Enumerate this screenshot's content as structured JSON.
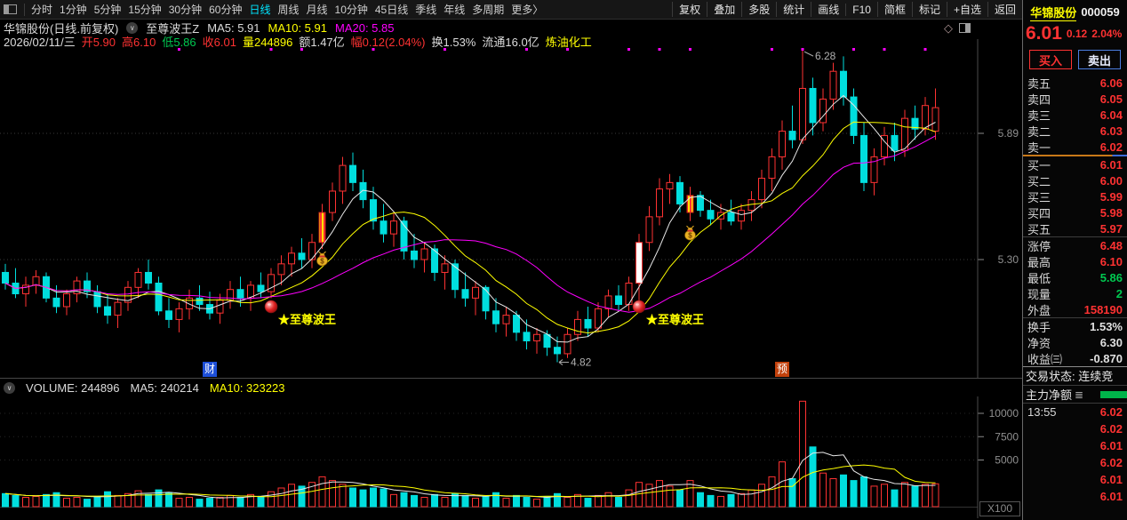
{
  "colors": {
    "red": "#ff3232",
    "green": "#00c850",
    "yellow": "#ffff00",
    "cyan": "#00dede",
    "magenta": "#ff00ff",
    "blue": "#4a7de0",
    "greenbar": "#00b44a",
    "axis": "#4a4a4a",
    "grid": "#3a3a3a",
    "label": "#909090",
    "ma5": "#e8e8e8",
    "ma10": "#ffff00",
    "ma20": "#ff00ff"
  },
  "topbar": {
    "tabs": [
      "分时",
      "1分钟",
      "5分钟",
      "15分钟",
      "30分钟",
      "60分钟",
      "日线",
      "周线",
      "月线",
      "10分钟",
      "45日线",
      "季线",
      "年线",
      "多周期",
      "更多〉"
    ],
    "active_tab": "日线",
    "tools": [
      "复权",
      "叠加",
      "多股",
      "统计",
      "画线",
      "F10",
      "简框",
      "标记",
      "+自选",
      "返回"
    ]
  },
  "chart_header": {
    "title": "华锦股份(日线.前复权)",
    "chevron_icon": "∨",
    "indicator": "至尊波王Z",
    "ma5_label": "MA5: 5.91",
    "ma10_label": "MA10: 5.91",
    "ma20_label": "MA20: 5.85"
  },
  "info_line": {
    "date": "2026/02/11/三",
    "open": "开5.90",
    "high": "高6.10",
    "low": "低5.86",
    "close": "收6.01",
    "volume": "量244896",
    "amount": "额1.47亿",
    "range": "幅0.12(2.04%)",
    "turnover": "换1.53%",
    "float_shares": "流通16.0亿",
    "industry": "炼油化工"
  },
  "panel": {
    "name": "华锦股份",
    "code": "000059",
    "price": "6.01",
    "change": "0.12",
    "change_pct": "2.04%",
    "buy_label": "买入",
    "sell_label": "卖出",
    "order_book": {
      "sells": [
        {
          "label": "卖五",
          "price": "6.06"
        },
        {
          "label": "卖四",
          "price": "6.05"
        },
        {
          "label": "卖三",
          "price": "6.04"
        },
        {
          "label": "卖二",
          "price": "6.03"
        },
        {
          "label": "卖一",
          "price": "6.02"
        }
      ],
      "buys": [
        {
          "label": "买一",
          "price": "6.01"
        },
        {
          "label": "买二",
          "price": "6.00"
        },
        {
          "label": "买三",
          "price": "5.99"
        },
        {
          "label": "买四",
          "price": "5.98"
        },
        {
          "label": "买五",
          "price": "5.97"
        }
      ]
    },
    "stats": [
      {
        "label": "涨停",
        "value": "6.48",
        "color": "#ff3232"
      },
      {
        "label": "最高",
        "value": "6.10",
        "color": "#ff3232"
      },
      {
        "label": "最低",
        "value": "5.86",
        "color": "#00c850"
      },
      {
        "label": "现量",
        "value": "2",
        "color": "#00c850"
      },
      {
        "label": "外盘",
        "value": "158190",
        "color": "#ff3232"
      }
    ],
    "stats2": [
      {
        "label": "换手",
        "value": "1.53%",
        "color": "#e0e0e0"
      },
      {
        "label": "净资",
        "value": "6.30",
        "color": "#e0e0e0"
      },
      {
        "label": "收益㈢",
        "value": "-0.870",
        "color": "#e0e0e0"
      }
    ],
    "trade_status": "交易状态: 连续竞",
    "main_flow_label": "主力净额",
    "doc_icon": "≣",
    "ticks": [
      {
        "time": "13:55",
        "price": "6.02"
      },
      {
        "time": "",
        "price": "6.02"
      },
      {
        "time": "",
        "price": "6.01"
      },
      {
        "time": "",
        "price": "6.02"
      },
      {
        "time": "",
        "price": "6.01"
      },
      {
        "time": "",
        "price": "6.01"
      }
    ]
  },
  "chart_data": {
    "type": "candlestick",
    "title": "华锦股份 日线 前复权",
    "grid_prices": [
      {
        "label": "5.89",
        "price": 5.89
      },
      {
        "label": "5.30",
        "price": 5.3
      }
    ],
    "annotations": [
      {
        "label": "6.28",
        "index": 78,
        "price": 6.28,
        "kind": "peak"
      },
      {
        "label": "4.82",
        "index": 54,
        "price": 4.82,
        "kind": "trough"
      }
    ],
    "signals": [
      {
        "index": 26,
        "price": 5.08,
        "text": "★至尊波王"
      },
      {
        "index": 62,
        "price": 5.08,
        "text": "★至尊波王"
      }
    ],
    "moneybags": [
      {
        "index": 31,
        "price": 5.3
      },
      {
        "index": 67,
        "price": 5.42
      }
    ],
    "event_markers": [
      {
        "label": "财",
        "index": 20,
        "bg": "#1d4fd8"
      },
      {
        "label": "预",
        "index": 76,
        "bg": "#c2410c"
      }
    ],
    "dots": [
      17,
      26,
      29,
      36,
      43,
      51,
      55,
      61,
      64,
      67,
      75,
      78,
      83,
      86,
      90
    ],
    "special_candles": {
      "striped": [
        31,
        67
      ],
      "white_body": [
        62
      ]
    },
    "vol_header": {
      "title": "VOLUME: 244896",
      "ma5": "MA5: 240214",
      "ma10": "MA10: 323223",
      "chevron_icon": "∨"
    },
    "volume_axis": {
      "labels": [
        "10000",
        "7500",
        "5000"
      ],
      "values": [
        10000,
        7500,
        5000
      ],
      "unit": "X100"
    },
    "candles": [
      [
        5.24,
        5.28,
        5.16,
        5.19,
        1400
      ],
      [
        5.19,
        5.26,
        5.12,
        5.14,
        1200
      ],
      [
        5.14,
        5.22,
        5.08,
        5.18,
        1000
      ],
      [
        5.18,
        5.25,
        5.14,
        5.22,
        1100
      ],
      [
        5.22,
        5.24,
        5.1,
        5.12,
        1300
      ],
      [
        5.12,
        5.18,
        5.05,
        5.08,
        1500
      ],
      [
        5.08,
        5.16,
        5.04,
        5.14,
        900
      ],
      [
        5.14,
        5.22,
        5.1,
        5.2,
        1000
      ],
      [
        5.2,
        5.24,
        5.12,
        5.15,
        800
      ],
      [
        5.15,
        5.18,
        5.05,
        5.08,
        1100
      ],
      [
        5.08,
        5.14,
        5.0,
        5.04,
        1600
      ],
      [
        5.04,
        5.12,
        4.98,
        5.1,
        1200
      ],
      [
        5.1,
        5.2,
        5.06,
        5.17,
        1400
      ],
      [
        5.17,
        5.26,
        5.12,
        5.24,
        1700
      ],
      [
        5.24,
        5.3,
        5.16,
        5.19,
        1300
      ],
      [
        5.19,
        5.22,
        5.04,
        5.06,
        1800
      ],
      [
        5.06,
        5.12,
        4.98,
        5.02,
        1500
      ],
      [
        5.02,
        5.1,
        4.96,
        5.07,
        900
      ],
      [
        5.07,
        5.16,
        5.02,
        5.12,
        1000
      ],
      [
        5.12,
        5.18,
        5.06,
        5.09,
        800
      ],
      [
        5.09,
        5.15,
        5.02,
        5.05,
        900
      ],
      [
        5.05,
        5.14,
        5.0,
        5.11,
        1000
      ],
      [
        5.11,
        5.2,
        5.07,
        5.16,
        1200
      ],
      [
        5.16,
        5.22,
        5.08,
        5.12,
        1000
      ],
      [
        5.12,
        5.2,
        5.06,
        5.18,
        1300
      ],
      [
        5.18,
        5.24,
        5.12,
        5.15,
        1100
      ],
      [
        5.15,
        5.26,
        5.12,
        5.23,
        1600
      ],
      [
        5.23,
        5.32,
        5.18,
        5.28,
        2000
      ],
      [
        5.28,
        5.36,
        5.22,
        5.33,
        2400
      ],
      [
        5.33,
        5.4,
        5.26,
        5.3,
        2200
      ],
      [
        5.3,
        5.42,
        5.26,
        5.38,
        2600
      ],
      [
        5.38,
        5.56,
        5.35,
        5.52,
        3200
      ],
      [
        5.52,
        5.66,
        5.48,
        5.62,
        2800
      ],
      [
        5.62,
        5.78,
        5.56,
        5.74,
        2400
      ],
      [
        5.74,
        5.8,
        5.62,
        5.66,
        2000
      ],
      [
        5.66,
        5.72,
        5.54,
        5.58,
        1800
      ],
      [
        5.58,
        5.64,
        5.44,
        5.48,
        2000
      ],
      [
        5.48,
        5.56,
        5.38,
        5.42,
        1900
      ],
      [
        5.42,
        5.52,
        5.36,
        5.48,
        1300
      ],
      [
        5.48,
        5.5,
        5.3,
        5.34,
        1500
      ],
      [
        5.34,
        5.42,
        5.26,
        5.3,
        1200
      ],
      [
        5.3,
        5.38,
        5.24,
        5.35,
        1000
      ],
      [
        5.35,
        5.37,
        5.2,
        5.24,
        1300
      ],
      [
        5.24,
        5.32,
        5.16,
        5.28,
        1000
      ],
      [
        5.28,
        5.3,
        5.12,
        5.16,
        1400
      ],
      [
        5.16,
        5.24,
        5.08,
        5.12,
        1200
      ],
      [
        5.12,
        5.2,
        5.04,
        5.17,
        900
      ],
      [
        5.17,
        5.18,
        5.02,
        5.06,
        1100
      ],
      [
        5.06,
        5.12,
        4.96,
        5.0,
        1500
      ],
      [
        5.0,
        5.08,
        4.94,
        5.04,
        900
      ],
      [
        5.04,
        5.06,
        4.92,
        4.96,
        1200
      ],
      [
        4.96,
        5.02,
        4.88,
        4.92,
        1000
      ],
      [
        4.92,
        4.98,
        4.86,
        4.95,
        800
      ],
      [
        4.95,
        4.97,
        4.85,
        4.89,
        1100
      ],
      [
        4.89,
        4.94,
        4.82,
        4.86,
        1400
      ],
      [
        4.86,
        4.98,
        4.84,
        4.95,
        1000
      ],
      [
        4.95,
        5.06,
        4.92,
        5.02,
        1300
      ],
      [
        5.02,
        5.08,
        4.94,
        4.98,
        900
      ],
      [
        4.98,
        5.1,
        4.96,
        5.07,
        1200
      ],
      [
        5.07,
        5.16,
        5.03,
        5.13,
        1500
      ],
      [
        5.13,
        5.18,
        5.06,
        5.09,
        1000
      ],
      [
        5.09,
        5.22,
        5.06,
        5.19,
        1800
      ],
      [
        5.19,
        5.42,
        5.1,
        5.38,
        2600
      ],
      [
        5.38,
        5.55,
        5.34,
        5.5,
        2400
      ],
      [
        5.5,
        5.68,
        5.46,
        5.63,
        2800
      ],
      [
        5.63,
        5.7,
        5.56,
        5.66,
        2200
      ],
      [
        5.66,
        5.69,
        5.52,
        5.56,
        1800
      ],
      [
        5.52,
        5.64,
        5.48,
        5.6,
        2800
      ],
      [
        5.6,
        5.62,
        5.5,
        5.53,
        1500
      ],
      [
        5.53,
        5.58,
        5.46,
        5.49,
        1200
      ],
      [
        5.49,
        5.56,
        5.44,
        5.52,
        1100
      ],
      [
        5.52,
        5.58,
        5.46,
        5.48,
        1300
      ],
      [
        5.48,
        5.56,
        5.44,
        5.53,
        1400
      ],
      [
        5.53,
        5.62,
        5.48,
        5.58,
        1800
      ],
      [
        5.58,
        5.72,
        5.54,
        5.68,
        2400
      ],
      [
        5.68,
        5.82,
        5.62,
        5.78,
        3200
      ],
      [
        5.78,
        5.95,
        5.72,
        5.9,
        4800
      ],
      [
        5.9,
        6.02,
        5.82,
        5.86,
        3000
      ],
      [
        5.86,
        6.28,
        5.84,
        6.1,
        11300
      ],
      [
        6.1,
        6.15,
        5.88,
        5.94,
        6400
      ],
      [
        5.94,
        6.1,
        5.9,
        6.05,
        3600
      ],
      [
        6.05,
        6.22,
        6.0,
        6.18,
        3000
      ],
      [
        6.18,
        6.25,
        6.02,
        6.06,
        3400
      ],
      [
        6.06,
        6.1,
        5.84,
        5.88,
        2800
      ],
      [
        5.88,
        5.94,
        5.62,
        5.66,
        3200
      ],
      [
        5.66,
        5.82,
        5.6,
        5.78,
        2200
      ],
      [
        5.78,
        5.92,
        5.74,
        5.88,
        2400
      ],
      [
        5.88,
        5.94,
        5.76,
        5.81,
        1800
      ],
      [
        5.81,
        6.0,
        5.78,
        5.96,
        2600
      ],
      [
        5.96,
        6.02,
        5.86,
        5.91,
        2200
      ],
      [
        5.91,
        6.06,
        5.88,
        6.02,
        2400
      ],
      [
        5.9,
        6.1,
        5.86,
        6.01,
        2449
      ]
    ]
  }
}
